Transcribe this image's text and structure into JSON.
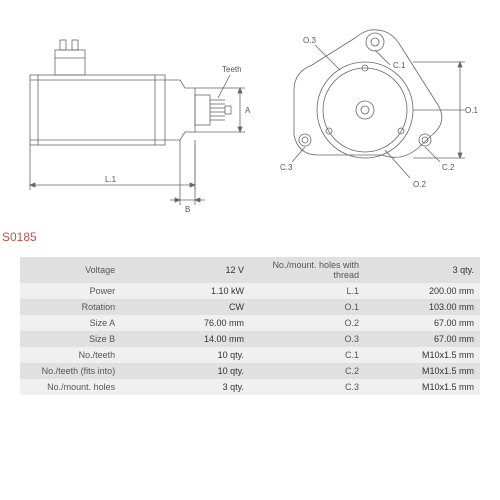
{
  "part_number": "S0185",
  "diagram": {
    "type": "technical-drawing",
    "stroke_color": "#666666",
    "stroke_width": 0.8,
    "label_fontsize": 8,
    "label_color": "#555555",
    "labels": {
      "teeth": "Teeth",
      "L1": "L.1",
      "A": "A",
      "B": "B",
      "O1": "O.1",
      "O2": "O.2",
      "O3": "O.3",
      "C1": "C.1",
      "C2": "C.2",
      "C3": "C.3"
    }
  },
  "table": {
    "background_odd": "#e0e0e0",
    "background_even": "#f0f0f0",
    "fontsize": 9,
    "rows": [
      {
        "l1": "Voltage",
        "v1": "12 V",
        "l2": "No./mount. holes with thread",
        "v2": "3 qty."
      },
      {
        "l1": "Power",
        "v1": "1.10 kW",
        "l2": "L.1",
        "v2": "200.00 mm"
      },
      {
        "l1": "Rotation",
        "v1": "CW",
        "l2": "O.1",
        "v2": "103.00 mm"
      },
      {
        "l1": "Size A",
        "v1": "76.00 mm",
        "l2": "O.2",
        "v2": "67.00 mm"
      },
      {
        "l1": "Size B",
        "v1": "14.00 mm",
        "l2": "O.3",
        "v2": "67.00 mm"
      },
      {
        "l1": "No./teeth",
        "v1": "10 qty.",
        "l2": "C.1",
        "v2": "M10x1.5 mm"
      },
      {
        "l1": "No./teeth (fits into)",
        "v1": "10 qty.",
        "l2": "C.2",
        "v2": "M10x1.5 mm"
      },
      {
        "l1": "No./mount. holes",
        "v1": "3 qty.",
        "l2": "C.3",
        "v2": "M10x1.5 mm"
      }
    ]
  }
}
